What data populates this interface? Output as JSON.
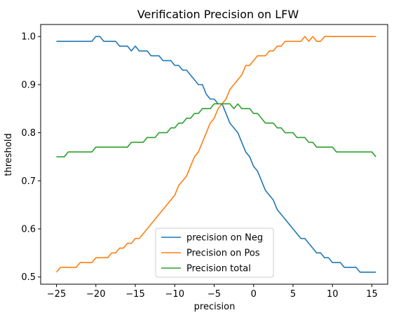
{
  "chart_data": {
    "type": "line",
    "title": "Verification Precision on LFW",
    "xlabel": "precision",
    "ylabel": "threshold",
    "xlim": [
      -27.0,
      17.0
    ],
    "ylim": [
      0.485,
      1.025
    ],
    "x_ticks": [
      -25,
      -20,
      -15,
      -10,
      -5,
      0,
      5,
      10,
      15
    ],
    "x_tick_labels": [
      "−25",
      "−20",
      "−15",
      "−10",
      "−5",
      "0",
      "5",
      "10",
      "15"
    ],
    "y_ticks": [
      0.5,
      0.6,
      0.7,
      0.8,
      0.9,
      1.0
    ],
    "y_tick_labels": [
      "0.5",
      "0.6",
      "0.7",
      "0.8",
      "0.9",
      "1.0"
    ],
    "grid": false,
    "legend_position": "lower-center",
    "x": [
      -25.0,
      -24.5,
      -24.0,
      -23.5,
      -23.0,
      -22.5,
      -22.0,
      -21.5,
      -21.0,
      -20.5,
      -20.0,
      -19.5,
      -19.0,
      -18.5,
      -18.0,
      -17.5,
      -17.0,
      -16.5,
      -16.0,
      -15.5,
      -15.0,
      -14.5,
      -14.0,
      -13.5,
      -13.0,
      -12.5,
      -12.0,
      -11.5,
      -11.0,
      -10.5,
      -10.0,
      -9.5,
      -9.0,
      -8.5,
      -8.0,
      -7.5,
      -7.0,
      -6.5,
      -6.0,
      -5.5,
      -5.0,
      -4.5,
      -4.0,
      -3.5,
      -3.0,
      -2.5,
      -2.0,
      -1.5,
      -1.0,
      -0.5,
      0.0,
      0.5,
      1.0,
      1.5,
      2.0,
      2.5,
      3.0,
      3.5,
      4.0,
      4.5,
      5.0,
      5.5,
      6.0,
      6.5,
      7.0,
      7.5,
      8.0,
      8.5,
      9.0,
      9.5,
      10.0,
      10.5,
      11.0,
      11.5,
      12.0,
      12.5,
      13.0,
      13.5,
      14.0,
      14.5,
      15.0,
      15.5
    ],
    "series": [
      {
        "name": "precision on Neg",
        "color": "#1f77b4",
        "values": [
          0.99,
          0.99,
          0.99,
          0.99,
          0.99,
          0.99,
          0.99,
          0.99,
          0.99,
          0.99,
          1.0,
          1.0,
          0.99,
          0.99,
          0.99,
          0.99,
          0.98,
          0.98,
          0.98,
          0.97,
          0.98,
          0.97,
          0.97,
          0.97,
          0.96,
          0.96,
          0.96,
          0.95,
          0.95,
          0.95,
          0.94,
          0.94,
          0.93,
          0.93,
          0.92,
          0.91,
          0.9,
          0.9,
          0.88,
          0.87,
          0.87,
          0.86,
          0.86,
          0.84,
          0.82,
          0.81,
          0.8,
          0.78,
          0.76,
          0.75,
          0.73,
          0.72,
          0.7,
          0.68,
          0.67,
          0.66,
          0.64,
          0.63,
          0.62,
          0.61,
          0.6,
          0.59,
          0.58,
          0.58,
          0.57,
          0.56,
          0.55,
          0.55,
          0.54,
          0.54,
          0.53,
          0.53,
          0.53,
          0.52,
          0.52,
          0.52,
          0.52,
          0.51,
          0.51,
          0.51,
          0.51,
          0.51
        ]
      },
      {
        "name": "Precision on Pos",
        "color": "#ff7f0e",
        "values": [
          0.51,
          0.52,
          0.52,
          0.52,
          0.52,
          0.52,
          0.53,
          0.53,
          0.53,
          0.53,
          0.54,
          0.54,
          0.54,
          0.54,
          0.55,
          0.55,
          0.56,
          0.56,
          0.57,
          0.57,
          0.58,
          0.58,
          0.59,
          0.6,
          0.61,
          0.62,
          0.63,
          0.64,
          0.65,
          0.66,
          0.67,
          0.69,
          0.7,
          0.71,
          0.73,
          0.75,
          0.76,
          0.78,
          0.8,
          0.82,
          0.83,
          0.85,
          0.86,
          0.87,
          0.89,
          0.9,
          0.91,
          0.92,
          0.94,
          0.94,
          0.95,
          0.96,
          0.96,
          0.96,
          0.97,
          0.97,
          0.98,
          0.98,
          0.99,
          0.99,
          0.99,
          0.99,
          0.99,
          1.0,
          0.99,
          1.0,
          0.99,
          0.99,
          1.0,
          1.0,
          1.0,
          1.0,
          1.0,
          1.0,
          1.0,
          1.0,
          1.0,
          1.0,
          1.0,
          1.0,
          1.0,
          1.0
        ]
      },
      {
        "name": "Precision total",
        "color": "#2ca02c",
        "values": [
          0.75,
          0.75,
          0.75,
          0.76,
          0.76,
          0.76,
          0.76,
          0.76,
          0.76,
          0.76,
          0.77,
          0.77,
          0.77,
          0.77,
          0.77,
          0.77,
          0.77,
          0.77,
          0.77,
          0.78,
          0.78,
          0.78,
          0.78,
          0.79,
          0.79,
          0.79,
          0.8,
          0.8,
          0.8,
          0.81,
          0.81,
          0.82,
          0.82,
          0.83,
          0.83,
          0.84,
          0.84,
          0.85,
          0.85,
          0.85,
          0.86,
          0.86,
          0.86,
          0.86,
          0.86,
          0.85,
          0.86,
          0.85,
          0.85,
          0.85,
          0.84,
          0.84,
          0.83,
          0.82,
          0.82,
          0.82,
          0.81,
          0.81,
          0.8,
          0.8,
          0.8,
          0.79,
          0.79,
          0.79,
          0.78,
          0.78,
          0.77,
          0.77,
          0.77,
          0.77,
          0.77,
          0.76,
          0.76,
          0.76,
          0.76,
          0.76,
          0.76,
          0.76,
          0.76,
          0.76,
          0.76,
          0.75
        ]
      }
    ]
  }
}
